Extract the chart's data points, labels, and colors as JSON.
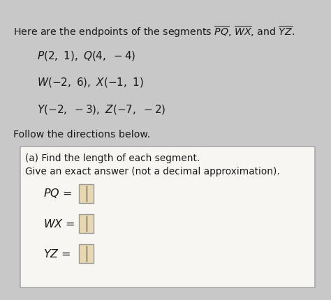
{
  "bg_color": "#c8c8c8",
  "paper_color": "#f0eeeb",
  "box_bg_color": "#f0eeeb",
  "text_color": "#1a1a1a",
  "header_text": "Here are the endpoints of the segments ",
  "seg_labels_overline": [
    "PQ",
    "WX",
    "YZ"
  ],
  "points_lines": [
    "P(2,\\ 1),\\ Q(4,\\ -4)",
    "W(-2,\\ 6),\\ X(-1,\\ 1)",
    "Y(-2,\\ -3),\\ Z(-7,\\ -2)"
  ],
  "follow_text": "Follow the directions below.",
  "box_title1": "(a) Find the length of each segment.",
  "box_title2": "Give an exact answer (not a decimal approximation).",
  "answer_labels": [
    "PQ",
    "WX",
    "YZ"
  ],
  "input_box_color": "#e8d8b0",
  "input_border_color": "#999999",
  "cursor_color": "#555555"
}
